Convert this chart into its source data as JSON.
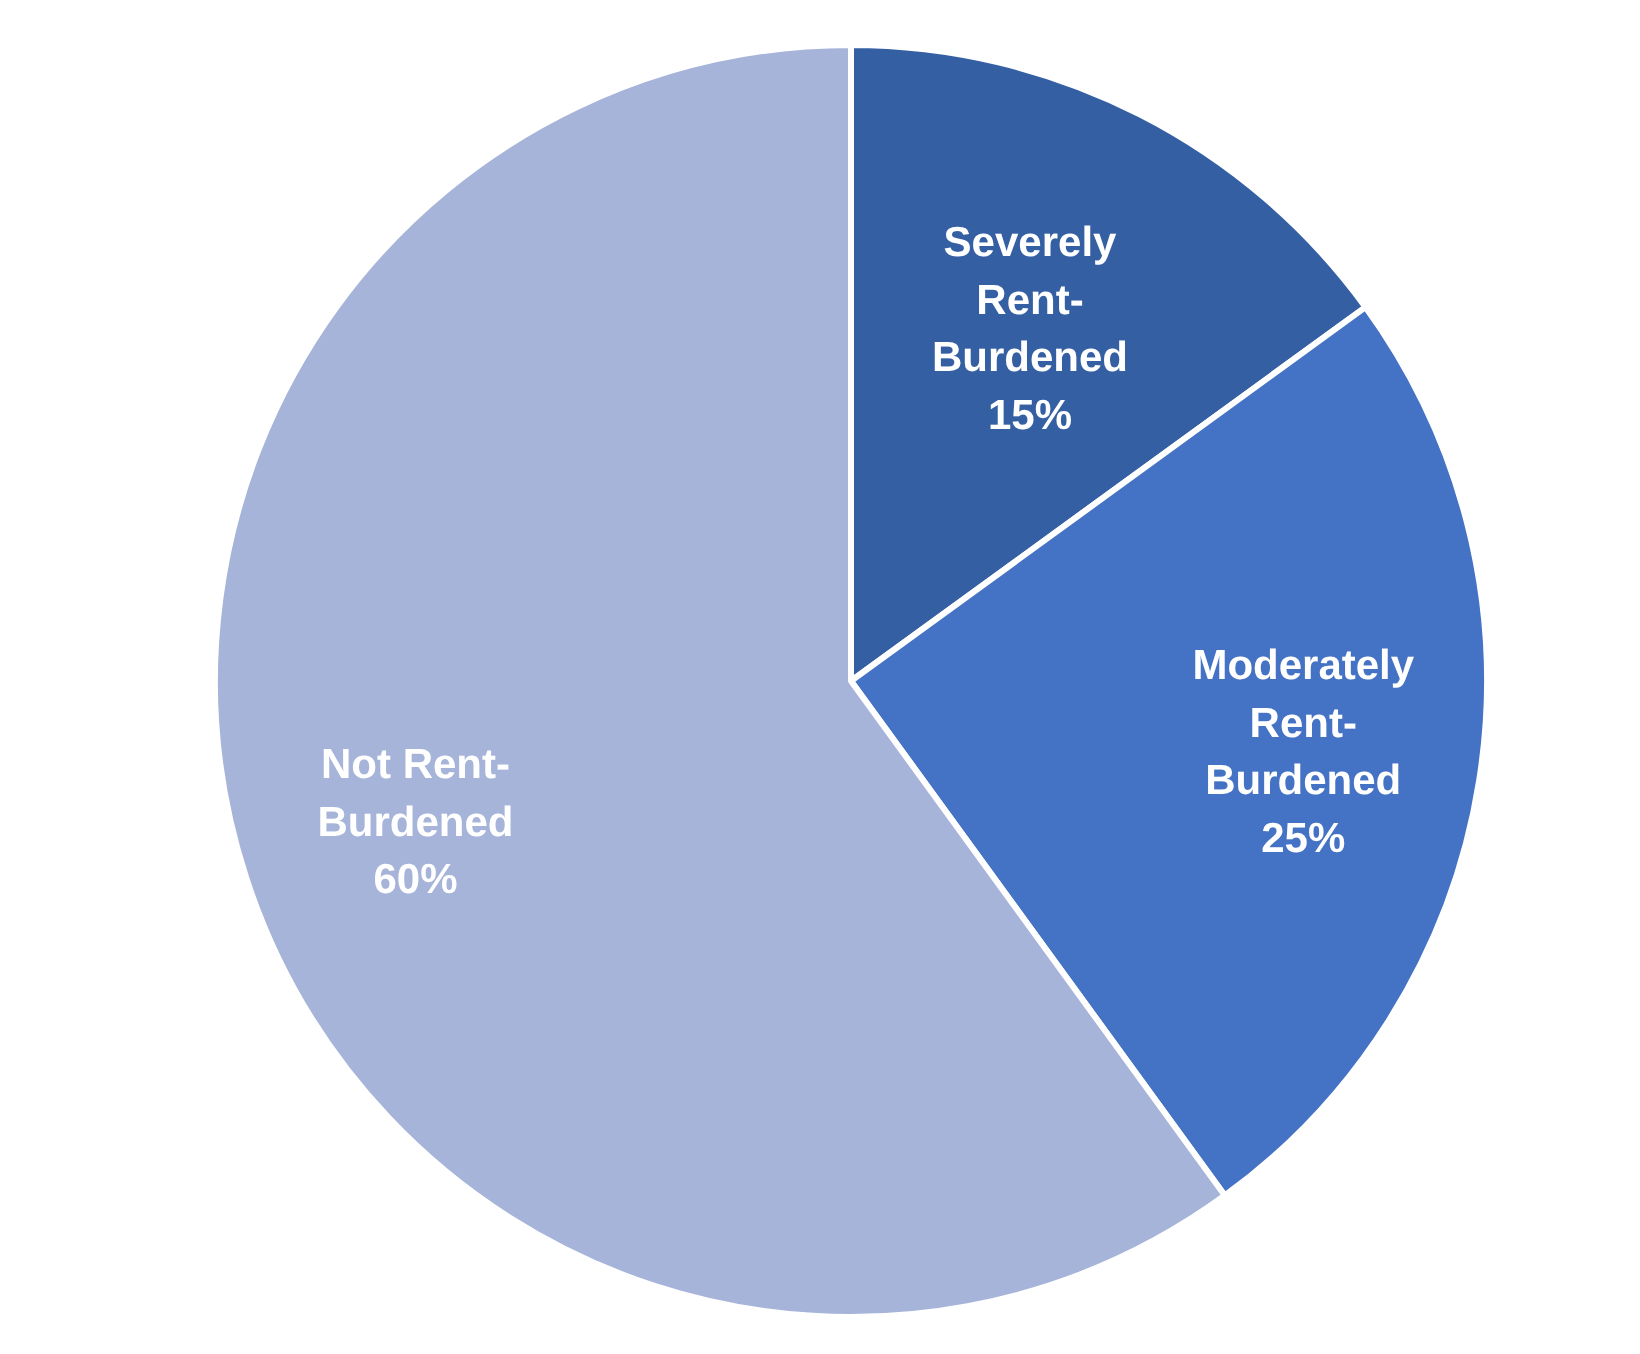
{
  "chart_data": {
    "type": "pie",
    "categories": [
      "Severely Rent-Burdened",
      "Moderately Rent-Burdened",
      "Not Rent-Burdened"
    ],
    "values": [
      15,
      25,
      60
    ],
    "colors": [
      "#355fa3",
      "#4472c4",
      "#a6b4da"
    ],
    "value_labels": [
      "15%",
      "25%",
      "60%"
    ]
  }
}
